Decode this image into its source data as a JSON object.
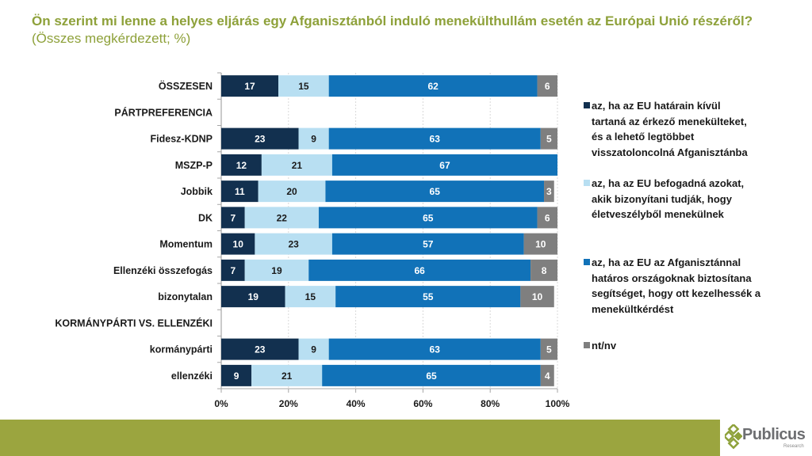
{
  "title": {
    "bold": "Ön szerint mi lenne a helyes eljárás egy Afganisztánból induló menekülthullám esetén az Európai Unió részéről?",
    "normal": " (Összes megkérdezett; %)"
  },
  "chart_data": {
    "type": "bar",
    "orientation": "horizontal",
    "stacked": true,
    "title": "Ön szerint mi lenne a helyes eljárás egy Afganisztánból induló menekülthullám esetén az Európai Unió részéről? (Összes megkérdezett; %)",
    "xlabel": "",
    "ylabel": "",
    "xlim": [
      0,
      100
    ],
    "x_ticks": [
      "0%",
      "20%",
      "40%",
      "60%",
      "80%",
      "100%"
    ],
    "grid": true,
    "legend_position": "right",
    "categories": [
      "ÖSSZESEN",
      "PÁRTPREFERENCIA",
      "Fidesz-KDNP",
      "MSZP-P",
      "Jobbik",
      "DK",
      "Momentum",
      "Ellenzéki összefogás",
      "bizonytalan",
      "KORMÁNYPÁRTI VS. ELLENZÉKI",
      "kormánypárti",
      "ellenzéki"
    ],
    "series": [
      {
        "name": "az, ha az EU határain kívül tartaná az érkező menekülteket, és a lehető legtöbbet visszatoloncolná Afganisztánba",
        "color": "#12304f",
        "values": [
          17,
          null,
          23,
          12,
          11,
          7,
          10,
          7,
          19,
          null,
          23,
          9
        ]
      },
      {
        "name": "az, ha az EU befogadná azokat, akik bizonyítani tudják, hogy életveszélyből menekülnek",
        "color": "#b8dff2",
        "values": [
          15,
          null,
          9,
          21,
          20,
          22,
          23,
          19,
          15,
          null,
          9,
          21
        ]
      },
      {
        "name": "az, ha az EU az Afganisztánnal határos országoknak biztosítana segítséget, hogy ott kezelhessék a menekültkérdést",
        "color": "#1172b8",
        "values": [
          62,
          null,
          63,
          67,
          65,
          65,
          57,
          66,
          55,
          null,
          63,
          65
        ]
      },
      {
        "name": "nt/nv",
        "color": "#7f7f7f",
        "values": [
          6,
          null,
          5,
          null,
          3,
          6,
          10,
          8,
          10,
          null,
          5,
          4
        ]
      }
    ]
  },
  "legend": [
    {
      "lines": [
        "az, ha az EU határain kívül",
        "tartaná az érkező menekülteket,",
        "és a lehető legtöbbet",
        "visszatoloncolná Afganisztánba"
      ]
    },
    {
      "lines": [
        "az, ha az EU befogadná azokat,",
        "akik bizonyítani tudják, hogy",
        "életveszélyből menekülnek"
      ]
    },
    {
      "lines": [
        "az, ha az EU az Afganisztánnal",
        "határos országoknak biztosítana",
        "segítséget, hogy ott kezelhessék a",
        "menekültkérdést"
      ]
    },
    {
      "lines": [
        "nt/nv"
      ]
    }
  ],
  "logo": {
    "name": "Publicus",
    "sub": "Research"
  }
}
